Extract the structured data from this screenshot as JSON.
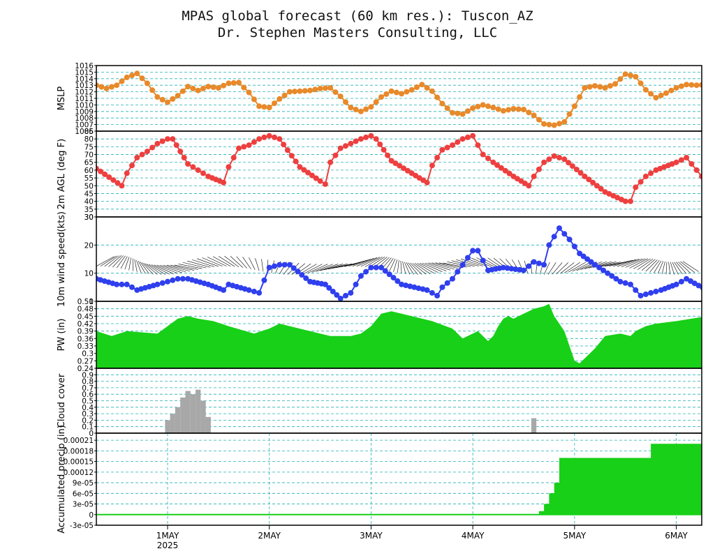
{
  "titles": {
    "line1": "MPAS global forecast (60 km res.): Tuscon_AZ",
    "line2": "Dr. Stephen Masters Consulting, LLC"
  },
  "colors": {
    "grid": "#20b0b0",
    "mslp": "#e8892a",
    "temp": "#ee3f3f",
    "wind": "#2f3fee",
    "pw": "#18d018",
    "cloud": "#a8a8a8",
    "precip": "#18d018"
  },
  "chart_data": [
    {
      "type": "line",
      "ylabel": "MSLP",
      "ylim": [
        1006,
        1016
      ],
      "y_ticks": [
        "1006",
        "1007",
        "1008",
        "1009",
        "1010",
        "1011",
        "1012",
        "1013",
        "1014",
        "1015",
        "1016"
      ],
      "x_days": [
        0.3,
        0.4,
        0.5,
        0.6,
        0.7,
        0.8,
        0.9,
        1.0,
        1.1,
        1.2,
        1.3,
        1.4,
        1.5,
        1.6,
        1.7,
        1.8,
        1.9,
        2.0,
        2.1,
        2.2,
        2.3,
        2.4,
        2.5,
        2.6,
        2.7,
        2.8,
        2.9,
        3.0,
        3.1,
        3.2,
        3.3,
        3.4,
        3.5,
        3.6,
        3.7,
        3.8,
        3.9,
        4.0,
        4.1,
        4.2,
        4.3,
        4.4,
        4.5,
        4.6,
        4.7,
        4.8,
        4.9,
        5.0,
        5.1,
        5.2,
        5.3,
        5.4,
        5.5,
        5.6,
        5.7,
        5.8,
        5.9,
        6.0,
        6.1,
        6.2,
        6.3
      ],
      "values": [
        1013,
        1012.5,
        1013,
        1014.2,
        1014.8,
        1013.3,
        1011.2,
        1010.4,
        1011.4,
        1012.8,
        1012.2,
        1012.8,
        1012.6,
        1013.3,
        1013.4,
        1011.9,
        1009.8,
        1009.6,
        1010.9,
        1012,
        1012.1,
        1012.2,
        1012.5,
        1012.6,
        1011.3,
        1009.6,
        1009,
        1009.7,
        1011.2,
        1012.1,
        1011.7,
        1012.3,
        1013.1,
        1012.1,
        1010.2,
        1008.8,
        1008.6,
        1009.5,
        1010,
        1009.6,
        1009.1,
        1009.4,
        1009.3,
        1008.4,
        1007.1,
        1006.9,
        1007.4,
        1009.8,
        1012.6,
        1012.9,
        1012.6,
        1013.2,
        1014.7,
        1014.3,
        1012.3,
        1011.1,
        1011.8,
        1012.6,
        1013.1,
        1013,
        1013.1
      ]
    },
    {
      "type": "line",
      "ylabel": "2m AGL (deg F)",
      "ylim": [
        30,
        85
      ],
      "y_ticks": [
        "30",
        "35",
        "40",
        "45",
        "50",
        "55",
        "60",
        "65",
        "70",
        "75",
        "80",
        "85"
      ],
      "x_days": [
        0.3,
        0.55,
        0.6,
        0.7,
        0.8,
        0.9,
        1.0,
        1.05,
        1.2,
        1.3,
        1.4,
        1.55,
        1.6,
        1.7,
        1.8,
        1.9,
        2.0,
        2.1,
        2.3,
        2.5,
        2.55,
        2.6,
        2.7,
        2.8,
        2.9,
        3.0,
        3.05,
        3.2,
        3.4,
        3.55,
        3.6,
        3.7,
        3.8,
        3.9,
        4.0,
        4.1,
        4.2,
        4.4,
        4.55,
        4.6,
        4.7,
        4.8,
        4.9,
        5.1,
        5.3,
        5.5,
        5.55,
        5.6,
        5.7,
        5.8,
        6.0,
        6.1,
        6.2,
        6.3
      ],
      "values": [
        61,
        50,
        58,
        68,
        72,
        77,
        80,
        80,
        64,
        60,
        56,
        52,
        62,
        74,
        76,
        80,
        82,
        80,
        62,
        53,
        51,
        65,
        74,
        77,
        80,
        82,
        80,
        66,
        58,
        52,
        63,
        73,
        76,
        80,
        82,
        70,
        65,
        56,
        50,
        56,
        65,
        69,
        67,
        56,
        46,
        40,
        40,
        49,
        56,
        60,
        65,
        68,
        60,
        52
      ]
    },
    {
      "type": "line",
      "ylabel": "10m wind speed(kts)",
      "ylim": [
        0,
        30
      ],
      "y_ticks": [
        "0",
        "10",
        "20",
        "30"
      ],
      "x_days": [
        0.3,
        0.5,
        0.6,
        0.7,
        0.9,
        1.0,
        1.1,
        1.2,
        1.4,
        1.55,
        1.6,
        1.8,
        1.9,
        2.0,
        2.1,
        2.2,
        2.4,
        2.55,
        2.7,
        2.8,
        2.9,
        3.0,
        3.1,
        3.3,
        3.55,
        3.65,
        3.7,
        3.8,
        3.9,
        4.0,
        4.05,
        4.15,
        4.3,
        4.5,
        4.6,
        4.7,
        4.75,
        4.85,
        4.95,
        5.05,
        5.2,
        5.45,
        5.55,
        5.65,
        5.75,
        5.85,
        6.0,
        6.1,
        6.3
      ],
      "values": [
        8,
        6,
        6,
        4,
        6,
        7,
        8,
        8,
        6,
        4,
        6,
        4,
        3,
        12,
        13,
        13,
        7,
        6,
        1,
        3,
        9,
        12,
        12,
        6,
        4,
        2,
        5,
        8,
        13,
        18,
        18,
        11,
        12,
        11,
        14,
        13,
        20,
        26,
        22,
        17,
        13,
        7,
        6,
        2,
        3,
        4,
        6,
        8,
        4
      ]
    },
    {
      "type": "area",
      "ylabel": "PW (in)",
      "ylim": [
        0.24,
        0.51
      ],
      "y_ticks": [
        "0.24",
        "0.27",
        "0.3",
        "0.33",
        "0.36",
        "0.39",
        "0.42",
        "0.45",
        "0.48",
        "0.51"
      ],
      "x_days": [
        0.3,
        0.45,
        0.6,
        0.9,
        1.0,
        1.1,
        1.2,
        1.3,
        1.45,
        1.6,
        1.85,
        2.0,
        2.1,
        2.2,
        2.4,
        2.6,
        2.8,
        2.9,
        3.0,
        3.1,
        3.2,
        3.4,
        3.6,
        3.8,
        3.9,
        4.0,
        4.05,
        4.15,
        4.2,
        4.25,
        4.3,
        4.35,
        4.4,
        4.5,
        4.6,
        4.7,
        4.75,
        4.8,
        4.9,
        4.95,
        5.0,
        5.05,
        5.2,
        5.3,
        5.45,
        5.55,
        5.6,
        5.7,
        5.8,
        6.0,
        6.3
      ],
      "values": [
        0.39,
        0.37,
        0.39,
        0.38,
        0.41,
        0.44,
        0.45,
        0.44,
        0.43,
        0.41,
        0.38,
        0.4,
        0.42,
        0.41,
        0.39,
        0.37,
        0.37,
        0.38,
        0.41,
        0.46,
        0.47,
        0.45,
        0.43,
        0.4,
        0.36,
        0.38,
        0.39,
        0.35,
        0.37,
        0.41,
        0.44,
        0.45,
        0.44,
        0.46,
        0.48,
        0.49,
        0.5,
        0.45,
        0.39,
        0.33,
        0.27,
        0.26,
        0.32,
        0.37,
        0.38,
        0.37,
        0.39,
        0.41,
        0.42,
        0.43,
        0.45
      ]
    },
    {
      "type": "bar",
      "ylabel": "Cloud cover",
      "ylim": [
        0,
        1
      ],
      "y_ticks": [
        "0",
        "0.1",
        "0.2",
        "0.3",
        "0.4",
        "0.5",
        "0.6",
        "0.7",
        "0.8",
        "0.9"
      ],
      "bars": [
        {
          "x": 1.0,
          "value": 0.2
        },
        {
          "x": 1.05,
          "value": 0.3
        },
        {
          "x": 1.1,
          "value": 0.4
        },
        {
          "x": 1.15,
          "value": 0.55
        },
        {
          "x": 1.2,
          "value": 0.65
        },
        {
          "x": 1.25,
          "value": 0.6
        },
        {
          "x": 1.3,
          "value": 0.67
        },
        {
          "x": 1.35,
          "value": 0.5
        },
        {
          "x": 1.4,
          "value": 0.25
        },
        {
          "x": 4.6,
          "value": 0.23
        }
      ]
    },
    {
      "type": "area",
      "ylabel": "Accumulated precip (in)",
      "ylim": [
        -3e-05,
        0.00023
      ],
      "y_ticks": [
        "-3e-05",
        "0",
        "3e-05",
        "6e-05",
        "9e-05",
        "0.00012",
        "0.00015",
        "0.00018",
        "0.00021"
      ],
      "x_days": [
        0.3,
        4.6,
        4.65,
        4.7,
        4.75,
        4.8,
        4.85,
        5.7,
        5.75,
        6.3
      ],
      "values": [
        0,
        0,
        1e-05,
        3e-05,
        6e-05,
        9e-05,
        0.00016,
        0.00016,
        0.0002,
        0.0002
      ]
    }
  ],
  "x_axis": {
    "range_days": [
      0.3,
      6.25
    ],
    "ticks": [
      {
        "day": 1,
        "label": "1MAY"
      },
      {
        "day": 2,
        "label": "2MAY"
      },
      {
        "day": 3,
        "label": "3MAY"
      },
      {
        "day": 4,
        "label": "4MAY"
      },
      {
        "day": 5,
        "label": "5MAY"
      },
      {
        "day": 6,
        "label": "6MAY"
      }
    ],
    "year_label": "2025"
  }
}
